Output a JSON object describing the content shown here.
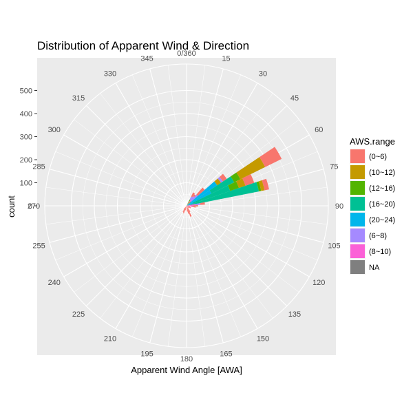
{
  "chart_data": {
    "type": "polar-stacked-bar",
    "title": "Distribution of Apparent Wind & Direction",
    "xlabel": "Apparent Wind Angle [AWA]",
    "ylabel": "count",
    "ylim": [
      0,
      500
    ],
    "y_ticks": [
      "0",
      "100",
      "200",
      "300",
      "400",
      "500"
    ],
    "angle_ticks": [
      "0/360",
      "15",
      "30",
      "45",
      "60",
      "75",
      "90",
      "105",
      "120",
      "135",
      "150",
      "165",
      "180",
      "195",
      "210",
      "225",
      "240",
      "255",
      "270",
      "285",
      "300",
      "315",
      "330",
      "345"
    ],
    "sector_width_deg": 7.5,
    "legend_title": "AWS.range",
    "legend_position": "right",
    "grid": true,
    "series": [
      {
        "name": "(0~6)",
        "color": "#F8766D"
      },
      {
        "name": "(10~12)",
        "color": "#C49A00"
      },
      {
        "name": "(12~16)",
        "color": "#53B400"
      },
      {
        "name": "(16~20)",
        "color": "#00C094"
      },
      {
        "name": "(20~24)",
        "color": "#00B6EB"
      },
      {
        "name": "(6~8)",
        "color": "#A58AFF"
      },
      {
        "name": "(8~10)",
        "color": "#FB61D7"
      },
      {
        "name": "NA",
        "color": "#7F7F7F"
      }
    ],
    "stack_order": [
      "(20~24)",
      "(16~20)",
      "(12~16)",
      "(10~12)",
      "(8~10)",
      "(6~8)",
      "(0~6)",
      "NA"
    ],
    "bars": [
      {
        "angle": 150,
        "values": {
          "(0~6)": 30
        }
      },
      {
        "angle": 157.5,
        "values": {
          "(0~6)": 50
        }
      },
      {
        "angle": 165,
        "values": {
          "(0~6)": 35
        }
      },
      {
        "angle": 172.5,
        "values": {
          "(0~6)": 25
        }
      },
      {
        "angle": 195,
        "values": {
          "(0~6)": 20
        }
      },
      {
        "angle": 202.5,
        "values": {
          "(0~6)": 35
        }
      },
      {
        "angle": 210,
        "values": {
          "(0~6)": 30
        }
      },
      {
        "angle": 217.5,
        "values": {
          "(0~6)": 20
        }
      },
      {
        "angle": 112.5,
        "values": {
          "(0~6)": 20
        }
      },
      {
        "angle": 120,
        "values": {
          "(0~6)": 20
        }
      },
      {
        "angle": 127.5,
        "values": {
          "(0~6)": 15
        }
      },
      {
        "angle": 135,
        "values": {
          "(0~6)": 15
        }
      },
      {
        "angle": 30,
        "values": {
          "(0~6)": 20,
          "(6~8)": 15,
          "(12~16)": 30
        }
      },
      {
        "angle": 37.5,
        "values": {
          "(0~6)": 10,
          "(6~8)": 20,
          "(8~10)": 30
        }
      },
      {
        "angle": 45,
        "values": {
          "(0~6)": 40,
          "(6~8)": 40,
          "(10~12)": 10,
          "(12~16)": 15
        }
      },
      {
        "angle": 52.5,
        "values": {
          "(0~6)": 20,
          "(6~8)": 10,
          "(10~12)": 20,
          "(20~24)": 160
        }
      },
      {
        "angle": 60,
        "values": {
          "(0~6)": 80,
          "(10~12)": 120,
          "(12~16)": 30,
          "(16~20)": 110,
          "(20~24)": 120
        }
      },
      {
        "angle": 67.5,
        "values": {
          "(0~6)": 40,
          "(10~12)": 30,
          "(12~16)": 40,
          "(16~20)": 170,
          "(20~24)": 30
        }
      },
      {
        "angle": 75,
        "values": {
          "(0~6)": 20,
          "(10~12)": 15,
          "(12~16)": 10,
          "(16~20)": 320
        }
      },
      {
        "angle": 82.5,
        "values": {
          "(0~6)": 20,
          "(6~8)": 20,
          "(8~10)": 40
        }
      },
      {
        "angle": 90,
        "values": {
          "(0~6)": 20,
          "(8~10)": 30
        }
      },
      {
        "angle": 97.5,
        "values": {
          "(0~6)": 20,
          "(8~10)": 20
        }
      },
      {
        "angle": 105,
        "values": {
          "(0~6)": 15
        }
      }
    ]
  }
}
